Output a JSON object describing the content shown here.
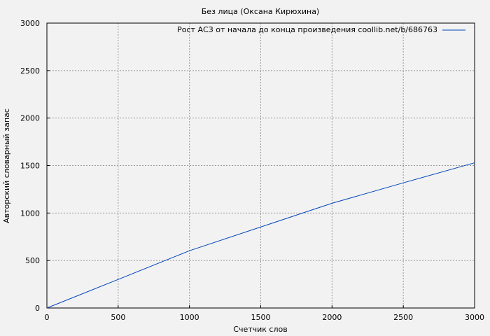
{
  "chart_data": {
    "type": "line",
    "title": "Без лица (Оксана Кирюхина)",
    "xlabel": "Счетчик слов",
    "ylabel": "Авторский словарный запас",
    "xlim": [
      0,
      3000
    ],
    "ylim": [
      0,
      3000
    ],
    "xticks": [
      0,
      500,
      1000,
      1500,
      2000,
      2500,
      3000
    ],
    "yticks": [
      0,
      500,
      1000,
      1500,
      2000,
      2500,
      3000
    ],
    "grid": true,
    "legend_position": "top-right",
    "series": [
      {
        "name": "Рост АСЗ от начала до конца произведения coollib.net/b/686763",
        "color": "#0044bb",
        "x": [
          0,
          500,
          1000,
          1500,
          2000,
          2500,
          3000
        ],
        "y": [
          0,
          301,
          603,
          853,
          1103,
          1318,
          1529
        ]
      }
    ]
  }
}
